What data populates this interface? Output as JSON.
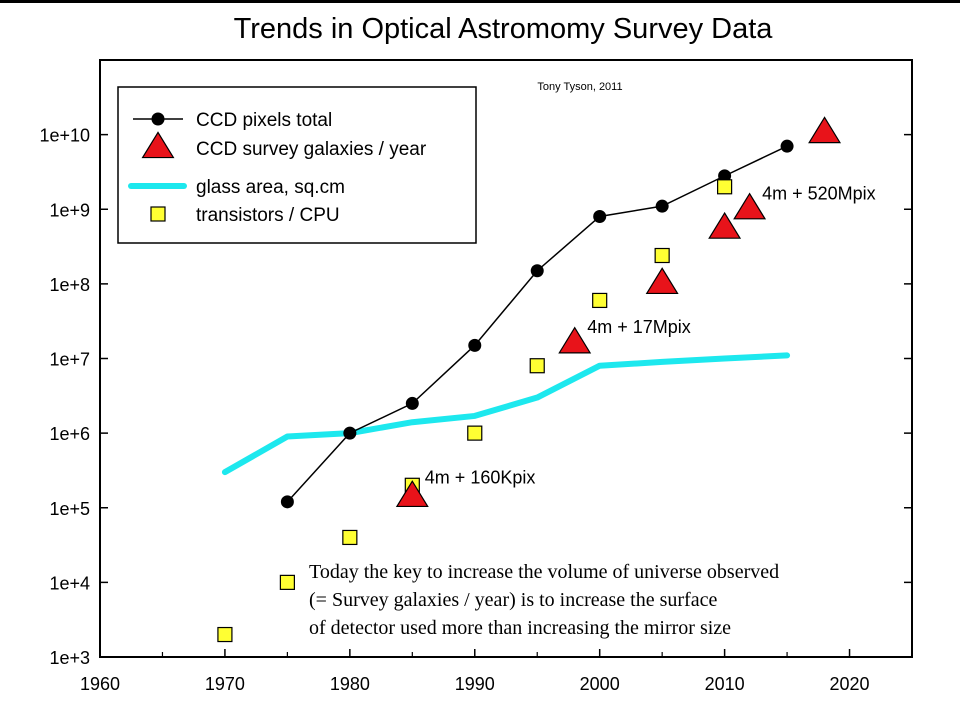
{
  "chart_data": {
    "type": "line",
    "title": "Trends in Optical Astromomy Survey Data",
    "credit": "Tony Tyson, 2011",
    "xlabel": "",
    "ylabel": "",
    "xlim": [
      1960,
      2025
    ],
    "ylim": [
      1000,
      100000000000
    ],
    "yscale": "log",
    "grid": false,
    "legend_position": "top-left",
    "x_ticks": [
      1960,
      1970,
      1980,
      1990,
      2000,
      2010,
      2020
    ],
    "y_ticks": [
      {
        "value": 1000,
        "label": "1e+3"
      },
      {
        "value": 10000,
        "label": "1e+4"
      },
      {
        "value": 100000,
        "label": "1e+5"
      },
      {
        "value": 1000000,
        "label": "1e+6"
      },
      {
        "value": 10000000,
        "label": "1e+7"
      },
      {
        "value": 100000000,
        "label": "1e+8"
      },
      {
        "value": 1000000000,
        "label": "1e+9"
      },
      {
        "value": 10000000000,
        "label": "1e+10"
      }
    ],
    "series": [
      {
        "name": "CCD pixels total",
        "style": "line-circle",
        "color": "#000000",
        "x": [
          1975,
          1980,
          1985,
          1990,
          1995,
          2000,
          2005,
          2010,
          2015
        ],
        "y": [
          120000,
          1000000,
          2500000,
          15000000,
          150000000,
          800000000,
          1100000000,
          2800000000,
          7000000000
        ]
      },
      {
        "name": "CCD survey galaxies / year",
        "style": "triangle",
        "color": "#e8131a",
        "x": [
          1985,
          1998,
          2005,
          2010,
          2012,
          2018
        ],
        "y": [
          140000,
          16000000,
          100000000,
          550000000,
          1000000000,
          10500000000
        ]
      },
      {
        "name": "glass area, sq.cm",
        "style": "thick-line",
        "color": "#1de8ee",
        "x": [
          1970,
          1975,
          1980,
          1985,
          1990,
          1995,
          2000,
          2005,
          2010,
          2015
        ],
        "y": [
          300000,
          900000,
          1000000,
          1400000,
          1700000,
          3000000,
          8000000,
          9000000,
          10000000,
          11000000
        ]
      },
      {
        "name": "transistors / CPU",
        "style": "square",
        "color": "#ffff33",
        "x": [
          1970,
          1975,
          1980,
          1985,
          1990,
          1995,
          2000,
          2005,
          2010
        ],
        "y": [
          2000,
          10000,
          40000,
          200000,
          1000000,
          8000000,
          60000000,
          240000000,
          2000000000
        ]
      }
    ],
    "annotations": [
      {
        "text": "4m + 160Kpix",
        "x": 1986,
        "y": 210000
      },
      {
        "text": "4m + 17Mpix",
        "x": 1999,
        "y": 22000000
      },
      {
        "text": "4m + 520Mpix",
        "x": 2013,
        "y": 1350000000
      }
    ],
    "note_lines": [
      "Today the key to increase the volume of universe observed",
      "(= Survey galaxies / year) is to increase the surface",
      "of detector used more than increasing the mirror  size"
    ]
  }
}
